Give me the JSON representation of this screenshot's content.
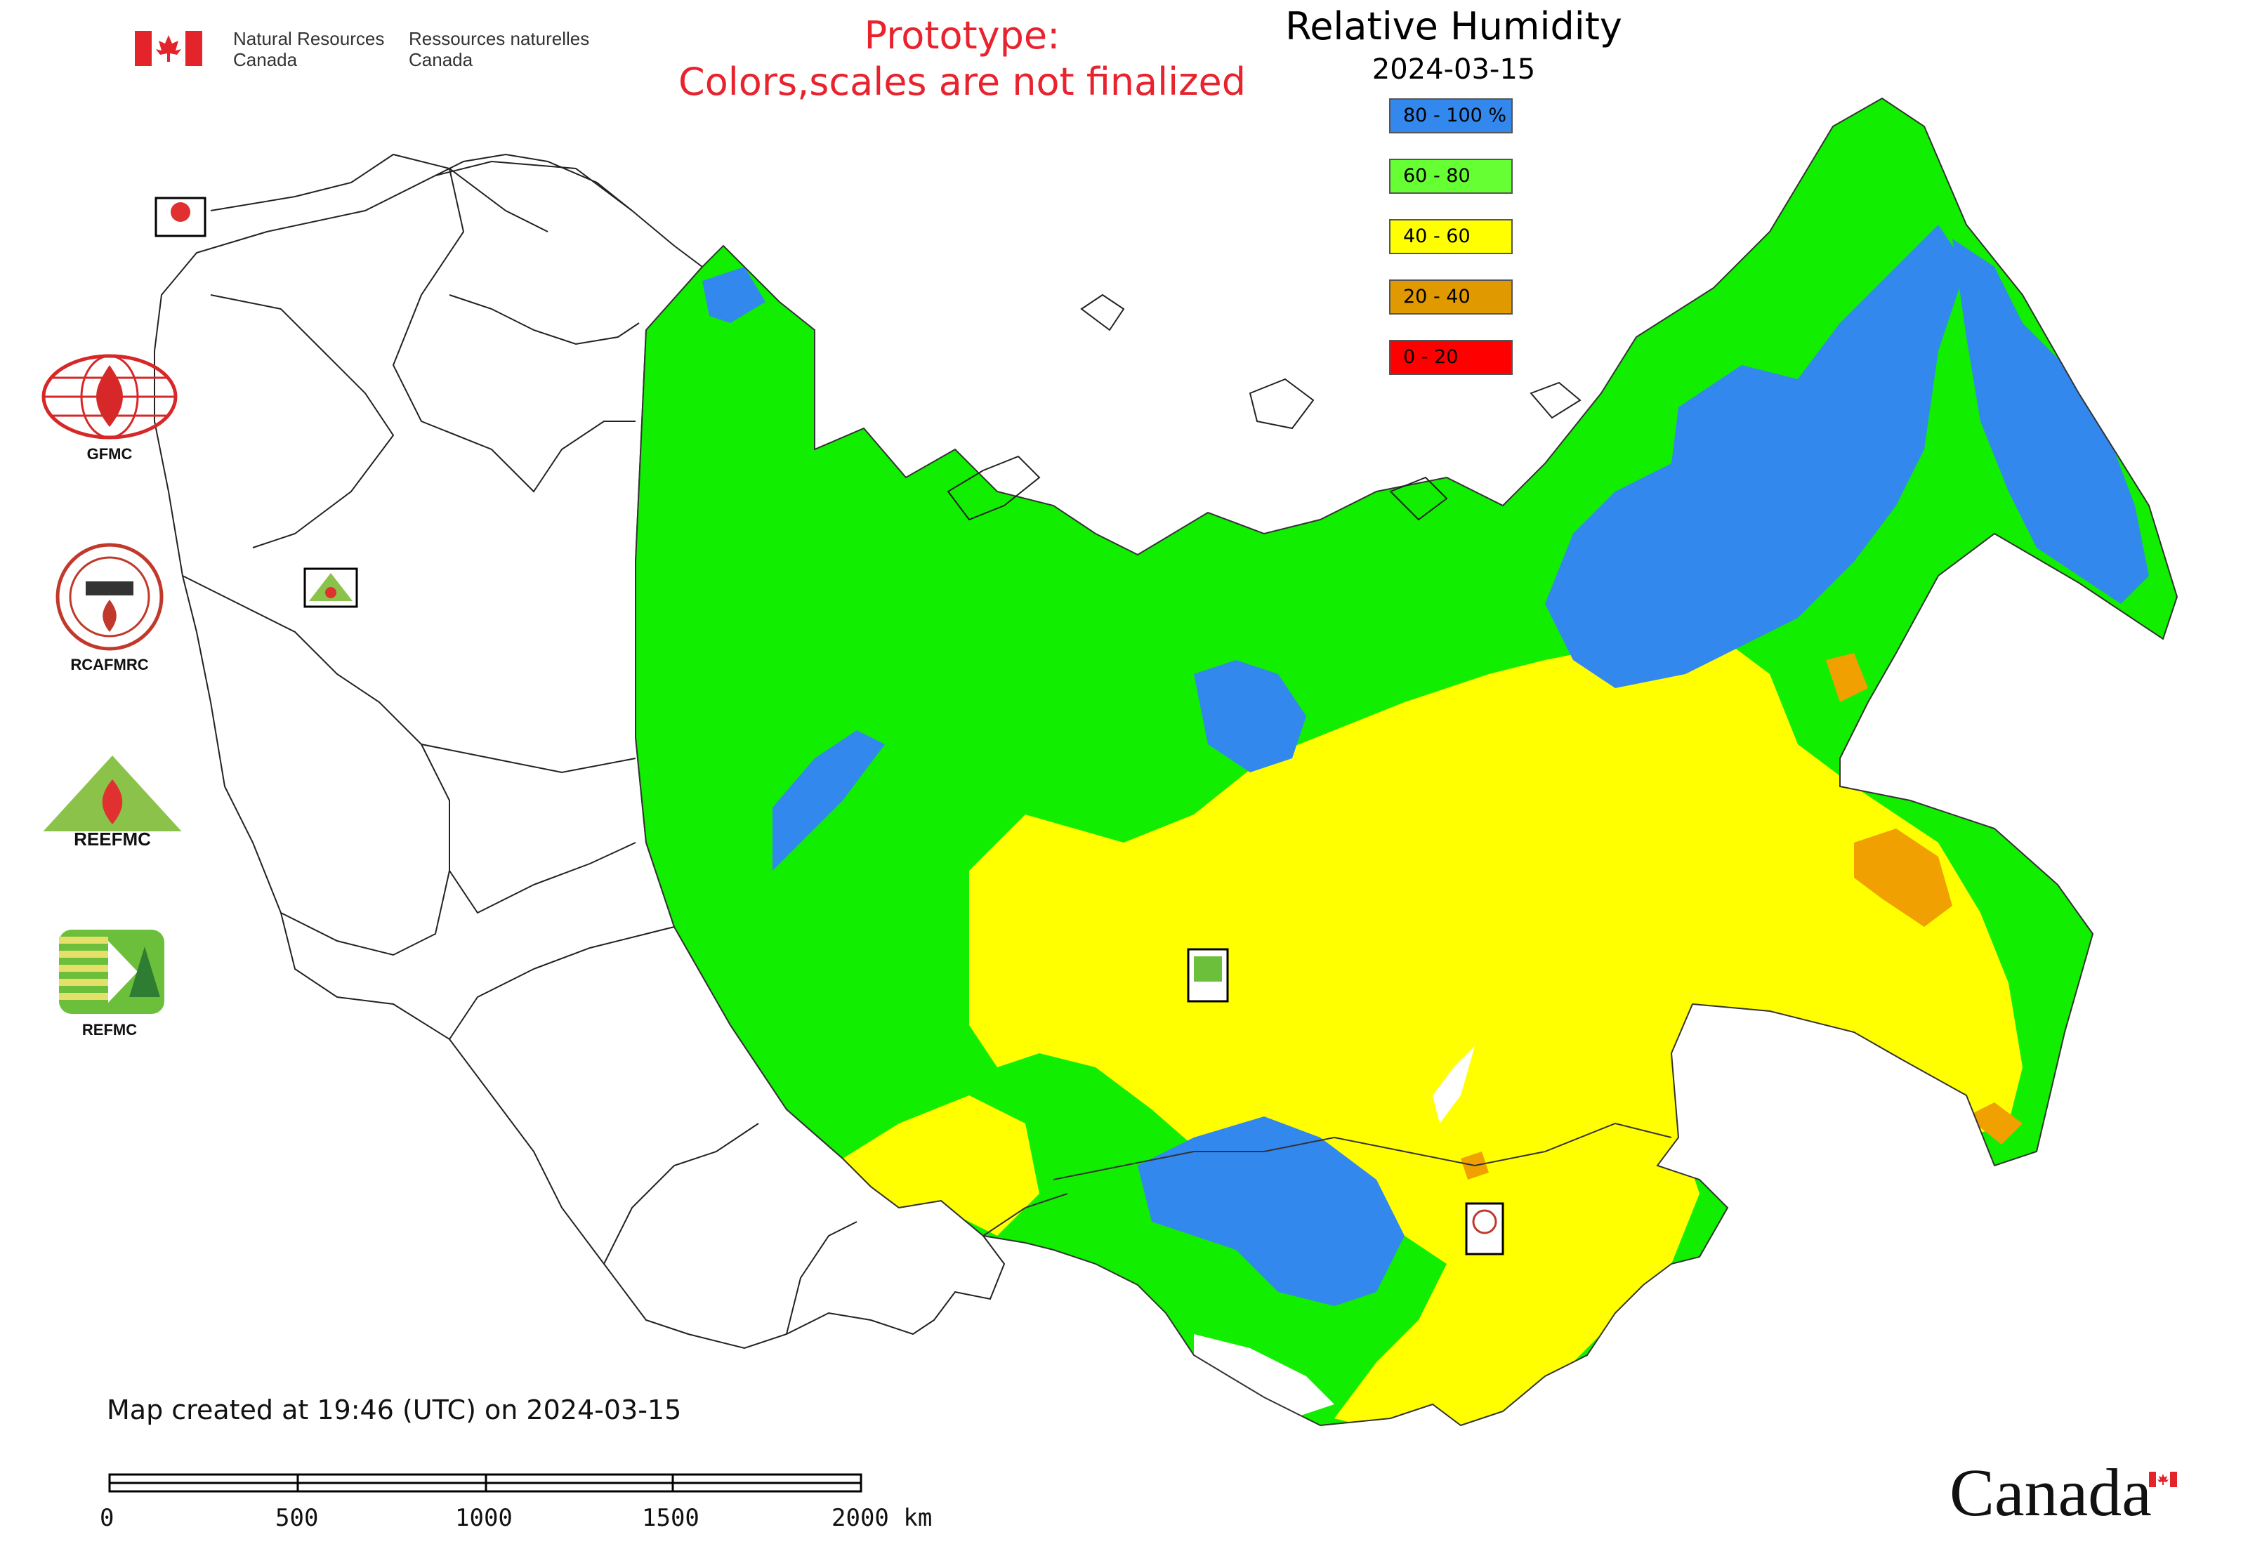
{
  "header": {
    "org_en_line1": "Natural Resources",
    "org_en_line2": "Canada",
    "org_fr_line1": "Ressources naturelles",
    "org_fr_line2": "Canada"
  },
  "warning": {
    "line1": "Prototype:",
    "line2": "Colors,scales are not finalized"
  },
  "legend": {
    "title": "Relative Humidity",
    "date": "2024-03-15",
    "items": [
      {
        "label": "80 - 100 %",
        "color": "#3388ee"
      },
      {
        "label": "60 - 80",
        "color": "#66ff33"
      },
      {
        "label": "40 - 60",
        "color": "#ffff00"
      },
      {
        "label": "20 - 40",
        "color": "#e09a00"
      },
      {
        "label": "0 - 20",
        "color": "#ff0000"
      }
    ]
  },
  "logos": {
    "gfmc": "GFMC",
    "rcafmrc": "RCAFMRC",
    "reefmc": "REEFMC",
    "refmc": "REFMC"
  },
  "footer": {
    "created": "Map created at 19:46 (UTC) on 2024-03-15",
    "scale_labels": [
      "0",
      "500",
      "1000",
      "1500",
      "2000 km"
    ],
    "wordmark": "Canada"
  }
}
